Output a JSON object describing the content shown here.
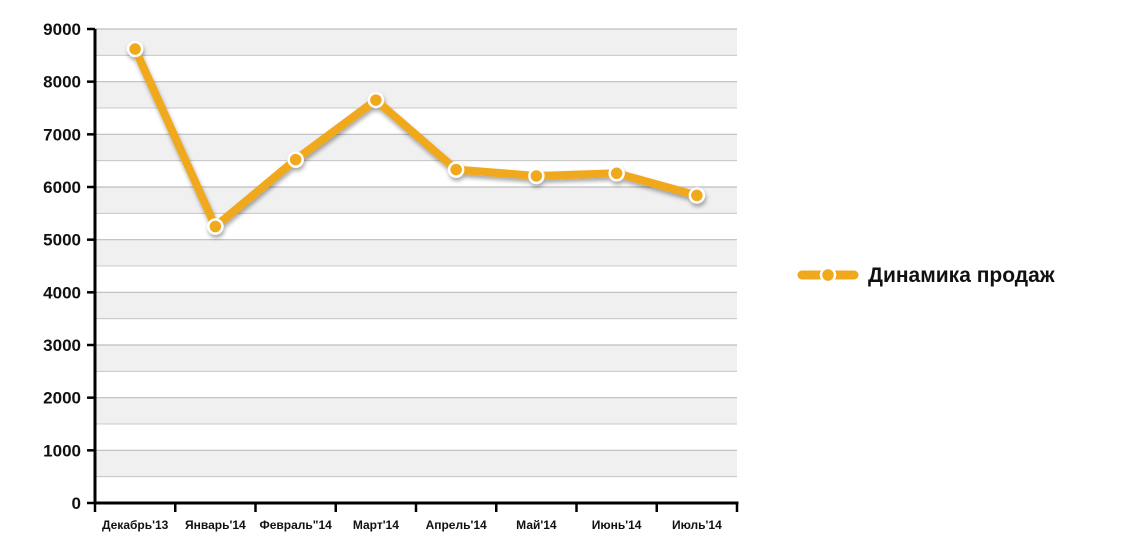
{
  "chart_data": {
    "type": "line",
    "categories": [
      "Декабрь'13",
      "Январь'14",
      "Февраль\"14",
      "Март'14",
      "Апрель'14",
      "Май'14",
      "Июнь'14",
      "Июль'14"
    ],
    "series": [
      {
        "name": "Динамика продаж",
        "values": [
          8620,
          5250,
          6520,
          7650,
          6330,
          6210,
          6260,
          5840
        ],
        "color": "#f0a81c"
      }
    ],
    "title": "",
    "xlabel": "",
    "ylabel": "",
    "ylim": [
      0,
      9000
    ],
    "yticks": [
      "0",
      "1000",
      "2000",
      "3000",
      "4000",
      "5000",
      "6000",
      "7000",
      "8000",
      "9000"
    ],
    "grid": true,
    "band_colors": [
      "#f0f0f0",
      "#ffffff"
    ],
    "gridline_color": "#bdbdbd",
    "legend_position": "right"
  }
}
